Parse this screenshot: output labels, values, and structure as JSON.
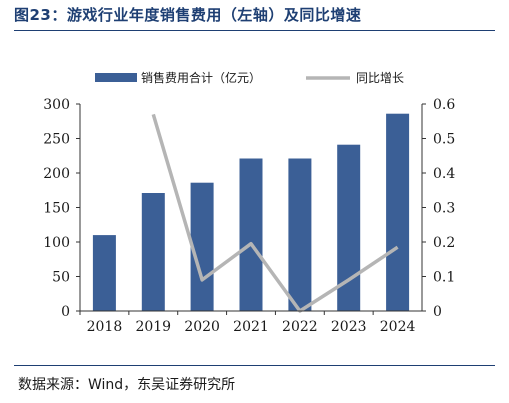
{
  "figure": {
    "title": "图23：游戏行业年度销售费用（左轴）及同比增速",
    "source": "数据来源：Wind，东吴证券研究所"
  },
  "chart_data": {
    "type": "bar",
    "categories": [
      "2018",
      "2019",
      "2020",
      "2021",
      "2022",
      "2023",
      "2024"
    ],
    "series": [
      {
        "name": "销售费用合计（亿元）",
        "kind": "bar",
        "axis": "left",
        "color": "#3b5f96",
        "values": [
          110,
          171,
          186,
          221,
          221,
          241,
          286
        ]
      },
      {
        "name": "同比增长",
        "kind": "line",
        "axis": "right",
        "color": "#b5b5b5",
        "values": [
          null,
          0.57,
          0.09,
          0.195,
          0.0,
          0.09,
          0.185
        ]
      }
    ],
    "y_left": {
      "min": 0,
      "max": 300,
      "ticks": [
        0,
        50,
        100,
        150,
        200,
        250,
        300
      ]
    },
    "y_right": {
      "min": 0,
      "max": 0.6,
      "ticks": [
        "0",
        "0.1",
        "0.2",
        "0.3",
        "0.4",
        "0.5",
        "0.6"
      ]
    },
    "legend_position": "top",
    "grid": false
  }
}
